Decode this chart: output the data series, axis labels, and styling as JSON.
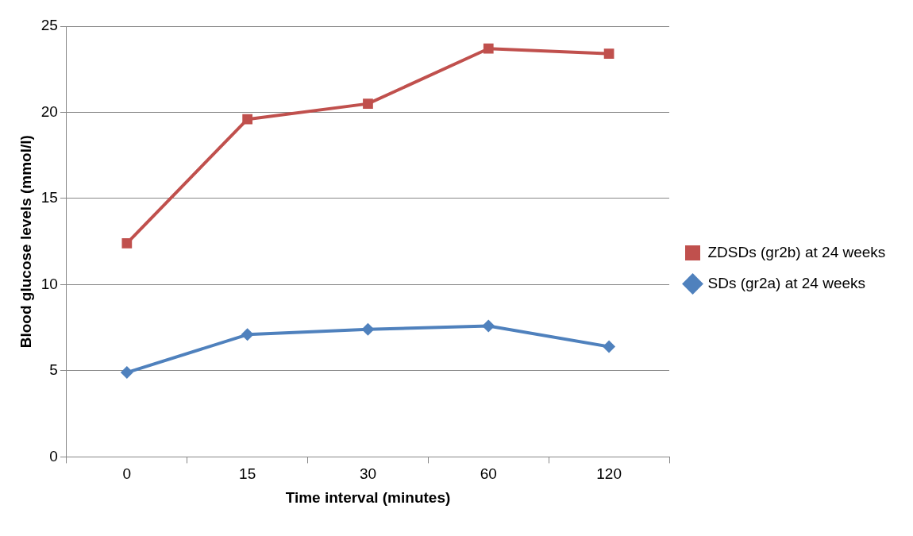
{
  "chart_data": {
    "type": "line",
    "xlabel": "Time interval (minutes)",
    "ylabel": "Blood glucose levels (mmol/l)",
    "categories": [
      "0",
      "15",
      "30",
      "60",
      "120"
    ],
    "series": [
      {
        "name": "ZDSDs (gr2b) at 24 weeks",
        "color": "#c0504d",
        "marker": "square",
        "values": [
          12.4,
          19.6,
          20.5,
          23.7,
          23.4
        ]
      },
      {
        "name": "SDs (gr2a) at 24 weeks",
        "color": "#4f81bd",
        "marker": "diamond",
        "values": [
          4.9,
          7.1,
          7.4,
          7.6,
          6.4
        ]
      }
    ],
    "ylim": [
      0,
      25
    ],
    "yticks": [
      0,
      5,
      10,
      15,
      20,
      25
    ],
    "grid": "y",
    "legend": "right",
    "line_style": "solid"
  }
}
